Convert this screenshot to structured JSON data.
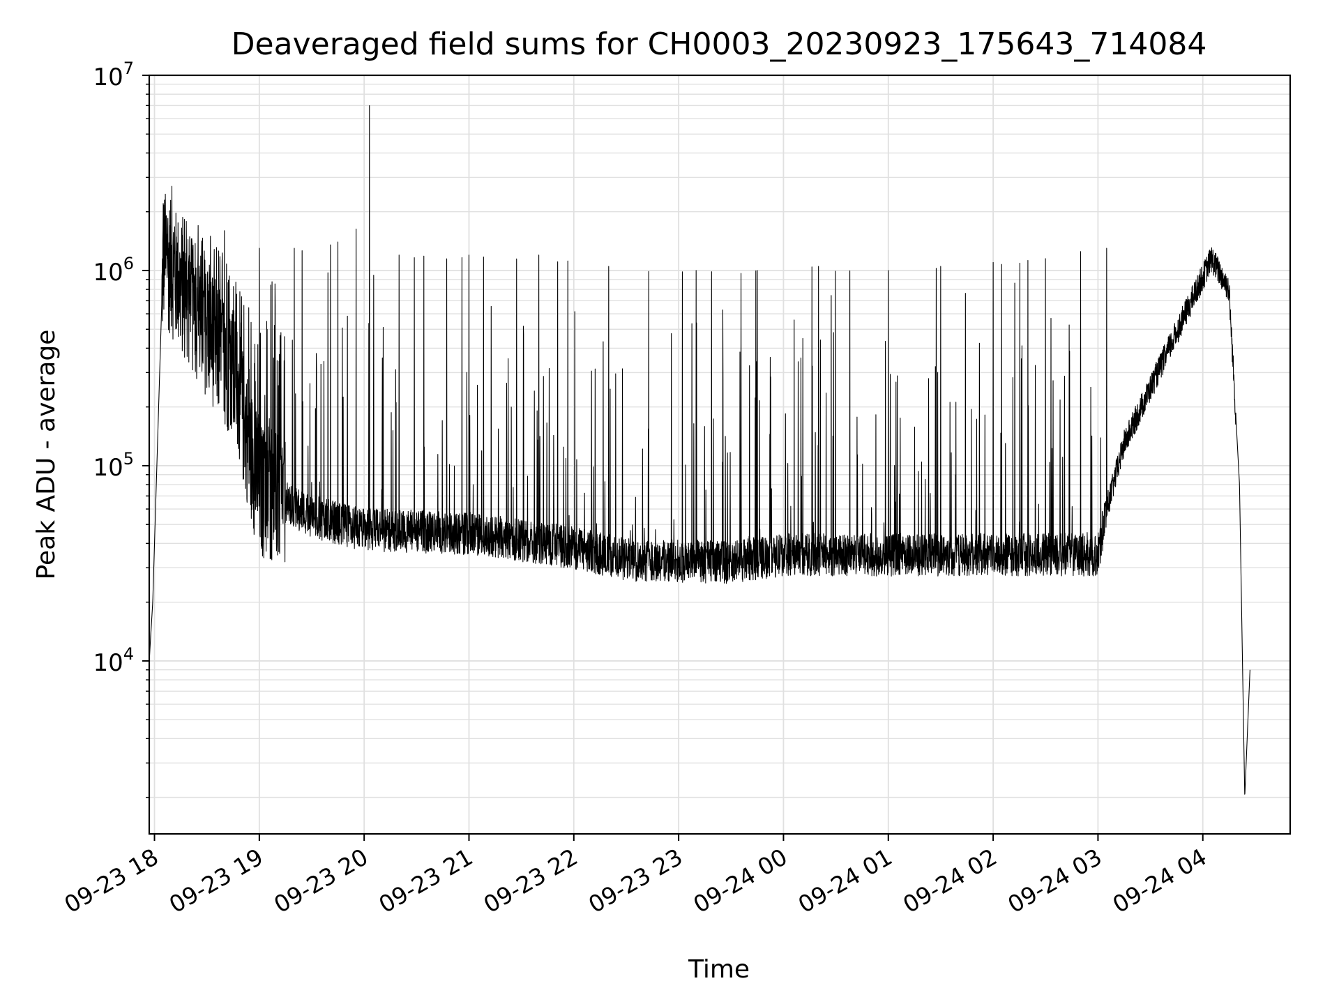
{
  "chart_data": {
    "type": "line",
    "title": "Deaveraged field sums for CH0003_20230923_175643_714084",
    "xlabel": "Time",
    "ylabel": "Peak ADU - average",
    "yscale": "log",
    "ylim": [
      1300,
      10000000
    ],
    "xlim": [
      "2023-09-23 17:57",
      "2023-09-24 04:50"
    ],
    "grid": true,
    "line_color": "#000000",
    "grid_color": "#e0e0e0",
    "x_ticks": [
      {
        "t": "2023-09-23 18:00",
        "label": "09-23 18"
      },
      {
        "t": "2023-09-23 19:00",
        "label": "09-23 19"
      },
      {
        "t": "2023-09-23 20:00",
        "label": "09-23 20"
      },
      {
        "t": "2023-09-23 21:00",
        "label": "09-23 21"
      },
      {
        "t": "2023-09-23 22:00",
        "label": "09-23 22"
      },
      {
        "t": "2023-09-23 23:00",
        "label": "09-23 23"
      },
      {
        "t": "2023-09-24 00:00",
        "label": "09-24 00"
      },
      {
        "t": "2023-09-24 01:00",
        "label": "09-24 01"
      },
      {
        "t": "2023-09-24 02:00",
        "label": "09-24 02"
      },
      {
        "t": "2023-09-24 03:00",
        "label": "09-24 03"
      },
      {
        "t": "2023-09-24 04:00",
        "label": "09-24 04"
      }
    ],
    "y_ticks": [
      {
        "value": 10000,
        "base": "10",
        "exp": "4"
      },
      {
        "value": 100000,
        "base": "10",
        "exp": "5"
      },
      {
        "value": 1000000,
        "base": "10",
        "exp": "6"
      },
      {
        "value": 10000000,
        "base": "10",
        "exp": "7"
      }
    ],
    "series": [
      {
        "baseline_envelope": [
          {
            "t": "2023-09-23 17:57",
            "y": 10000
          },
          {
            "t": "2023-09-23 17:59",
            "y": 20000
          },
          {
            "t": "2023-09-23 18:05",
            "y": 1200000
          },
          {
            "t": "2023-09-23 18:20",
            "y": 700000
          },
          {
            "t": "2023-09-23 18:45",
            "y": 300000
          },
          {
            "t": "2023-09-23 19:00",
            "y": 75000
          },
          {
            "t": "2023-09-23 19:30",
            "y": 55000
          },
          {
            "t": "2023-09-23 20:00",
            "y": 47000
          },
          {
            "t": "2023-09-23 21:00",
            "y": 45000
          },
          {
            "t": "2023-09-23 22:00",
            "y": 38000
          },
          {
            "t": "2023-09-23 22:30",
            "y": 33000
          },
          {
            "t": "2023-09-23 23:30",
            "y": 32000
          },
          {
            "t": "2023-09-24 00:00",
            "y": 35000
          },
          {
            "t": "2023-09-24 01:00",
            "y": 35000
          },
          {
            "t": "2023-09-24 02:00",
            "y": 35000
          },
          {
            "t": "2023-09-24 03:00",
            "y": 35000
          },
          {
            "t": "2023-09-24 03:05",
            "y": 60000
          },
          {
            "t": "2023-09-24 03:15",
            "y": 130000
          },
          {
            "t": "2023-09-24 03:30",
            "y": 250000
          },
          {
            "t": "2023-09-24 03:50",
            "y": 600000
          },
          {
            "t": "2023-09-24 04:05",
            "y": 1150000
          },
          {
            "t": "2023-09-24 04:15",
            "y": 800000
          },
          {
            "t": "2023-09-24 04:21",
            "y": 80000
          },
          {
            "t": "2023-09-24 04:24",
            "y": 2000
          },
          {
            "t": "2023-09-24 04:27",
            "y": 9000
          }
        ],
        "peaks": [
          {
            "t": "2023-09-23 18:10",
            "y": 2700000
          },
          {
            "t": "2023-09-23 18:25",
            "y": 1700000
          },
          {
            "t": "2023-09-23 18:40",
            "y": 1600000
          },
          {
            "t": "2023-09-23 19:00",
            "y": 1300000
          },
          {
            "t": "2023-09-23 19:20",
            "y": 1300000
          },
          {
            "t": "2023-09-23 19:45",
            "y": 1400000
          },
          {
            "t": "2023-09-23 20:03",
            "y": 7000000
          },
          {
            "t": "2023-09-23 20:20",
            "y": 1200000
          },
          {
            "t": "2023-09-23 21:00",
            "y": 1200000
          },
          {
            "t": "2023-09-23 21:40",
            "y": 1200000
          },
          {
            "t": "2023-09-23 22:20",
            "y": 1050000
          },
          {
            "t": "2023-09-23 23:10",
            "y": 1000000
          },
          {
            "t": "2023-09-23 23:45",
            "y": 1000000
          },
          {
            "t": "2023-09-24 00:20",
            "y": 1050000
          },
          {
            "t": "2023-09-24 01:00",
            "y": 1000000
          },
          {
            "t": "2023-09-24 01:30",
            "y": 1050000
          },
          {
            "t": "2023-09-24 02:00",
            "y": 1100000
          },
          {
            "t": "2023-09-24 02:30",
            "y": 1150000
          },
          {
            "t": "2023-09-24 02:50",
            "y": 1250000
          },
          {
            "t": "2023-09-24 03:05",
            "y": 1300000
          }
        ]
      }
    ]
  }
}
